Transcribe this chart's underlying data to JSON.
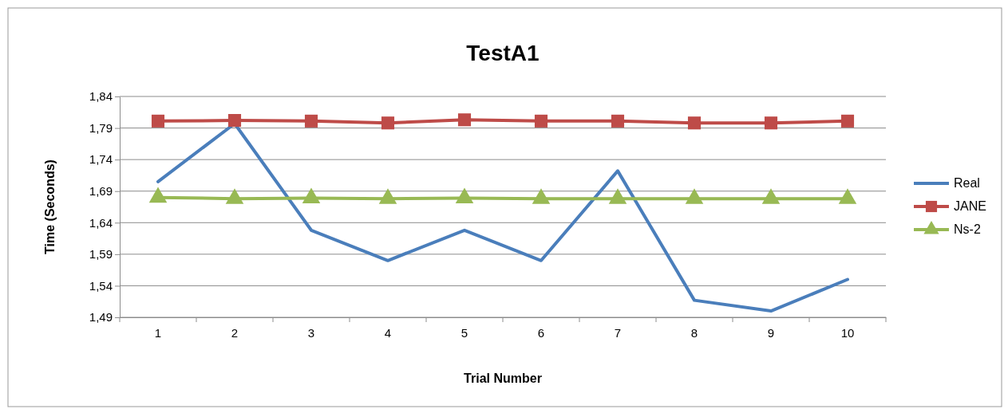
{
  "chart_data": {
    "type": "line",
    "title": "TestA1",
    "xlabel": "Trial Number",
    "ylabel": "Time (Seconds)",
    "categories": [
      "1",
      "2",
      "3",
      "4",
      "5",
      "6",
      "7",
      "8",
      "9",
      "10"
    ],
    "ylim": [
      1.49,
      1.84
    ],
    "yticks": [
      {
        "value": 1.49,
        "label": "1,49"
      },
      {
        "value": 1.54,
        "label": "1,54"
      },
      {
        "value": 1.59,
        "label": "1,59"
      },
      {
        "value": 1.64,
        "label": "1,64"
      },
      {
        "value": 1.69,
        "label": "1,69"
      },
      {
        "value": 1.74,
        "label": "1,74"
      },
      {
        "value": 1.79,
        "label": "1,79"
      },
      {
        "value": 1.84,
        "label": "1,84"
      }
    ],
    "grid": "y",
    "legend": "right",
    "series": [
      {
        "name": "Real",
        "color": "#4a7ebb",
        "marker": "none",
        "values": [
          1.705,
          1.797,
          1.628,
          1.58,
          1.628,
          1.58,
          1.722,
          1.517,
          1.5,
          1.55
        ]
      },
      {
        "name": "JANE",
        "color": "#be4b48",
        "marker": "square",
        "values": [
          1.801,
          1.802,
          1.801,
          1.798,
          1.803,
          1.801,
          1.801,
          1.798,
          1.798,
          1.801
        ]
      },
      {
        "name": "Ns-2",
        "color": "#98b954",
        "marker": "triangle",
        "values": [
          1.68,
          1.678,
          1.679,
          1.678,
          1.679,
          1.678,
          1.678,
          1.678,
          1.678,
          1.678
        ]
      }
    ]
  }
}
